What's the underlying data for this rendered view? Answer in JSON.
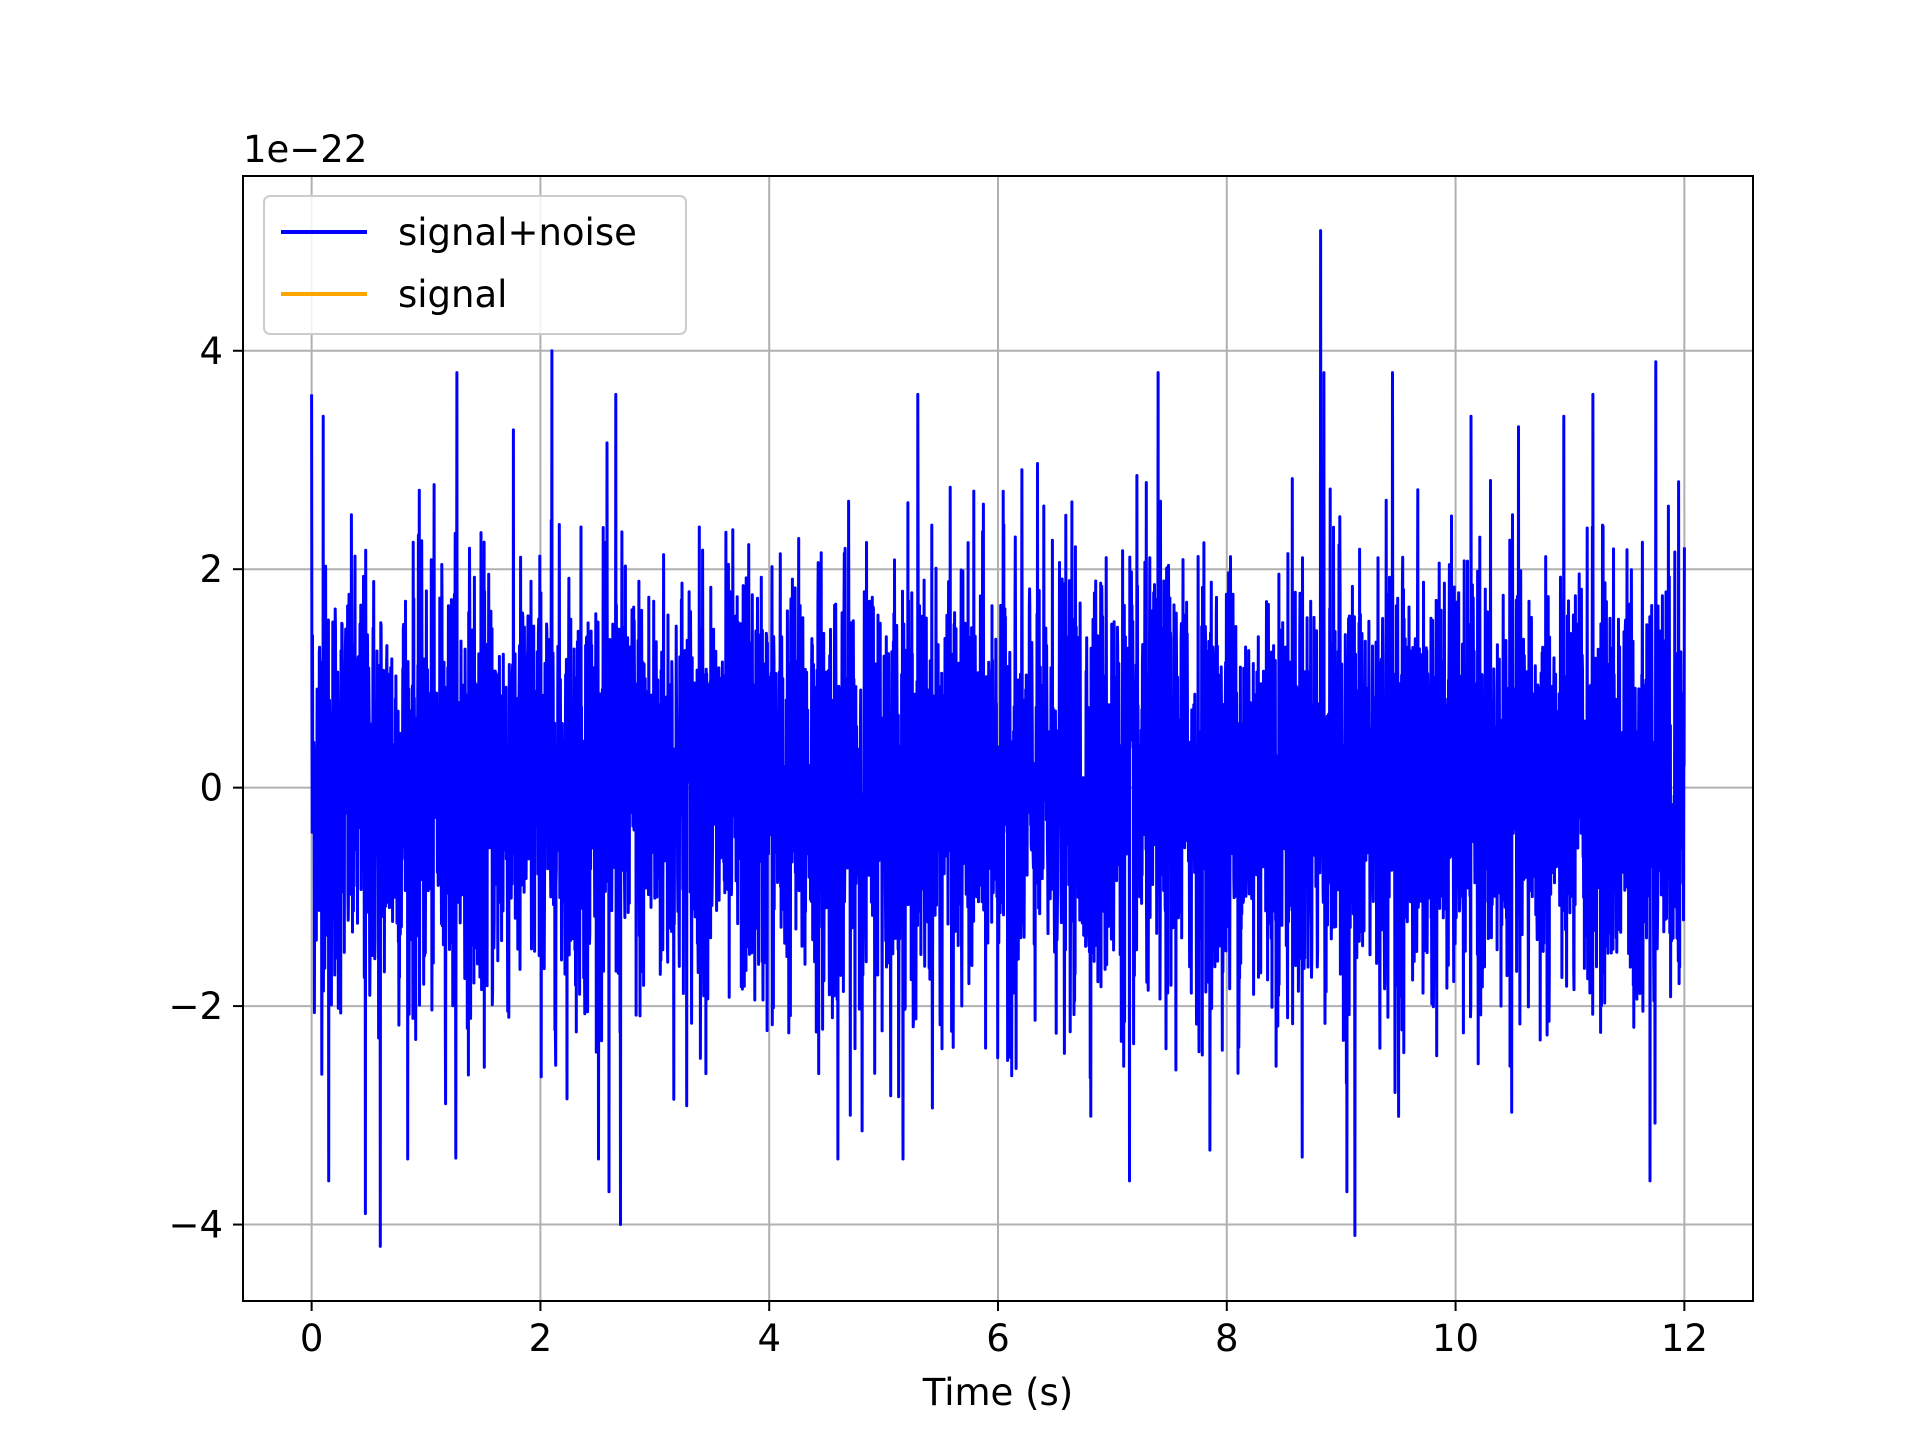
{
  "chart_data": {
    "type": "line",
    "title": "",
    "xlabel": "Time (s)",
    "ylabel": "",
    "y_offset_label": "1e−22",
    "y_scale_factor": 1e-22,
    "xlim": [
      -0.6,
      12.6
    ],
    "ylim": [
      -4.7,
      5.6
    ],
    "x_ticks": [
      0,
      2,
      4,
      6,
      8,
      10,
      12
    ],
    "x_tick_labels": [
      "0",
      "2",
      "4",
      "6",
      "8",
      "10",
      "12"
    ],
    "y_ticks": [
      -4,
      -2,
      0,
      2,
      4
    ],
    "y_tick_labels": [
      "−4",
      "−2",
      "0",
      "2",
      "4"
    ],
    "grid": true,
    "legend_position": "upper-left",
    "series": [
      {
        "name": "signal+noise",
        "color": "#0000ff",
        "x_start": 0,
        "x_end": 12,
        "typical_envelope": [
          -2.0,
          2.0
        ],
        "peaks": [
          {
            "x": 0.0,
            "y": 3.6
          },
          {
            "x": 0.1,
            "y": 3.4
          },
          {
            "x": 0.6,
            "y": -4.2
          },
          {
            "x": 0.47,
            "y": -3.9
          },
          {
            "x": 0.15,
            "y": -3.6
          },
          {
            "x": 1.27,
            "y": 3.8
          },
          {
            "x": 2.1,
            "y": 4.0
          },
          {
            "x": 2.7,
            "y": -4.0
          },
          {
            "x": 2.6,
            "y": -3.7
          },
          {
            "x": 2.66,
            "y": 3.6
          },
          {
            "x": 4.6,
            "y": -3.4
          },
          {
            "x": 5.3,
            "y": 3.6
          },
          {
            "x": 7.15,
            "y": -3.6
          },
          {
            "x": 7.4,
            "y": 3.8
          },
          {
            "x": 8.82,
            "y": 5.1
          },
          {
            "x": 8.85,
            "y": 3.8
          },
          {
            "x": 9.12,
            "y": -4.1
          },
          {
            "x": 9.05,
            "y": -3.7
          },
          {
            "x": 9.45,
            "y": 3.8
          },
          {
            "x": 11.2,
            "y": 3.6
          },
          {
            "x": 11.75,
            "y": 3.9
          },
          {
            "x": 11.7,
            "y": -3.6
          },
          {
            "x": 11.95,
            "y": 2.8
          },
          {
            "x": 12.0,
            "y": 2.2
          }
        ]
      },
      {
        "name": "signal",
        "color": "#ffa500",
        "values_note": ""
      }
    ]
  }
}
